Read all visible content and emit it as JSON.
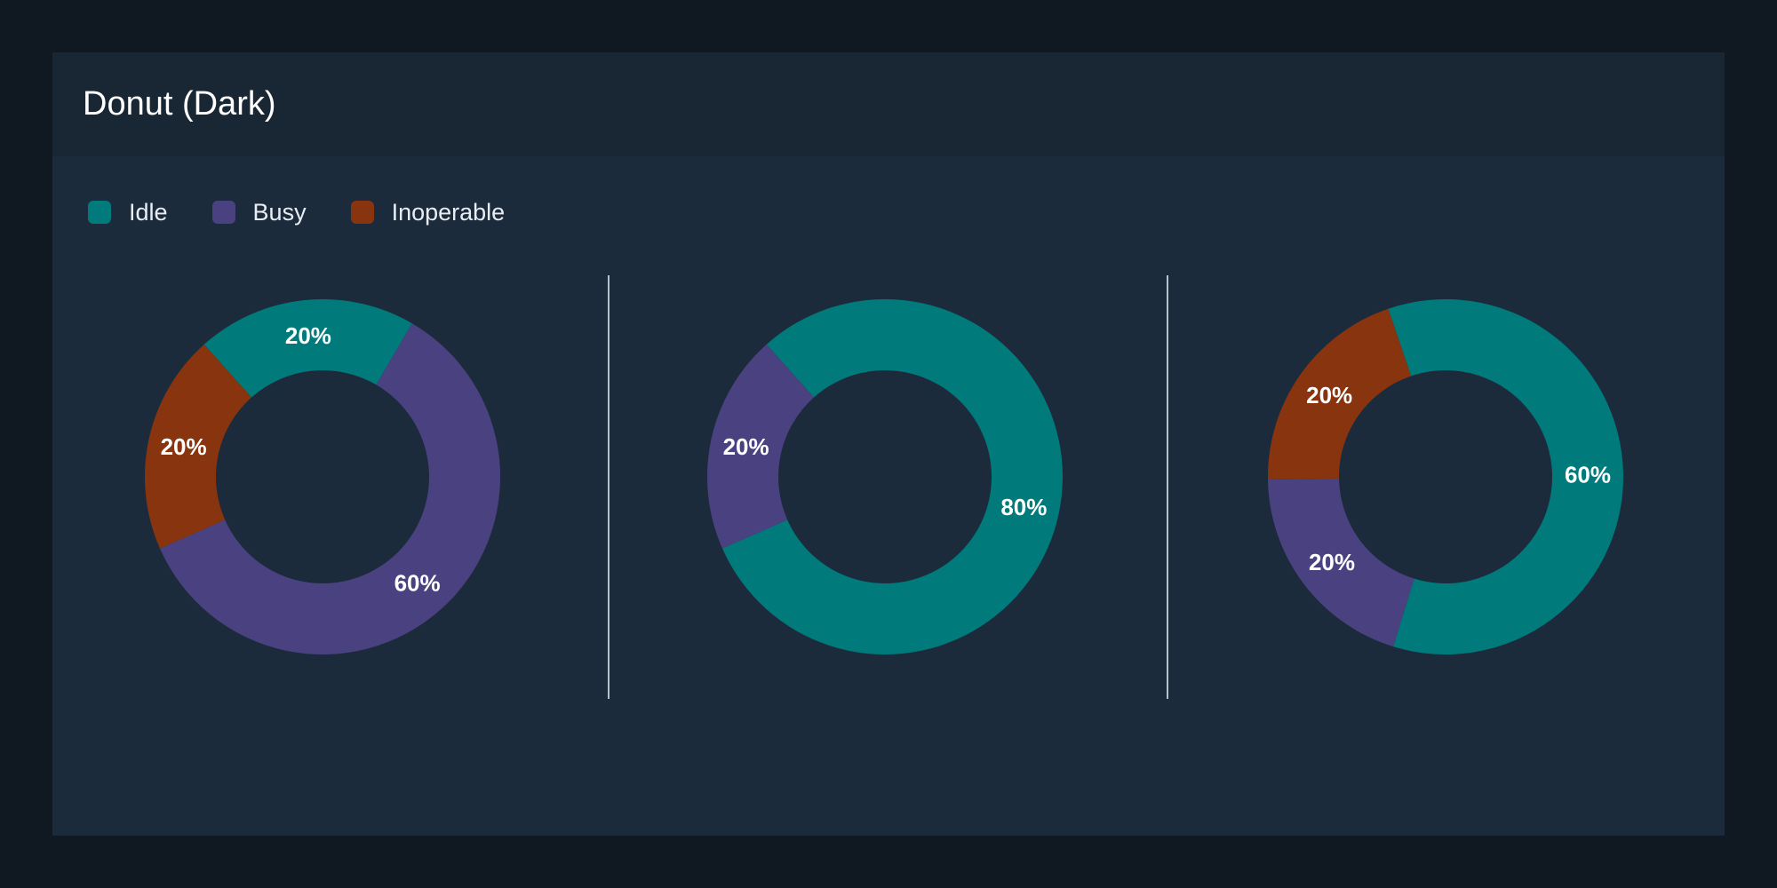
{
  "header": {
    "title": "Donut (Dark)"
  },
  "legend": [
    {
      "label": "Idle",
      "color": "#007a7a"
    },
    {
      "label": "Busy",
      "color": "#4a4280"
    },
    {
      "label": "Inoperable",
      "color": "#87340f"
    }
  ],
  "chart_data": [
    {
      "type": "pie",
      "variant": "donut",
      "categories": [
        "Idle",
        "Busy",
        "Inoperable"
      ],
      "values": [
        20,
        60,
        20
      ],
      "labels": [
        "20%",
        "60%",
        "20%"
      ]
    },
    {
      "type": "pie",
      "variant": "donut",
      "categories": [
        "Idle",
        "Busy",
        "Inoperable"
      ],
      "values": [
        80,
        20,
        0
      ],
      "labels": [
        "80%",
        "20%",
        ""
      ]
    },
    {
      "type": "pie",
      "variant": "donut",
      "categories": [
        "Idle",
        "Busy",
        "Inoperable"
      ],
      "values": [
        60,
        20,
        20
      ],
      "labels": [
        "60%",
        "20%",
        "20%"
      ]
    }
  ]
}
